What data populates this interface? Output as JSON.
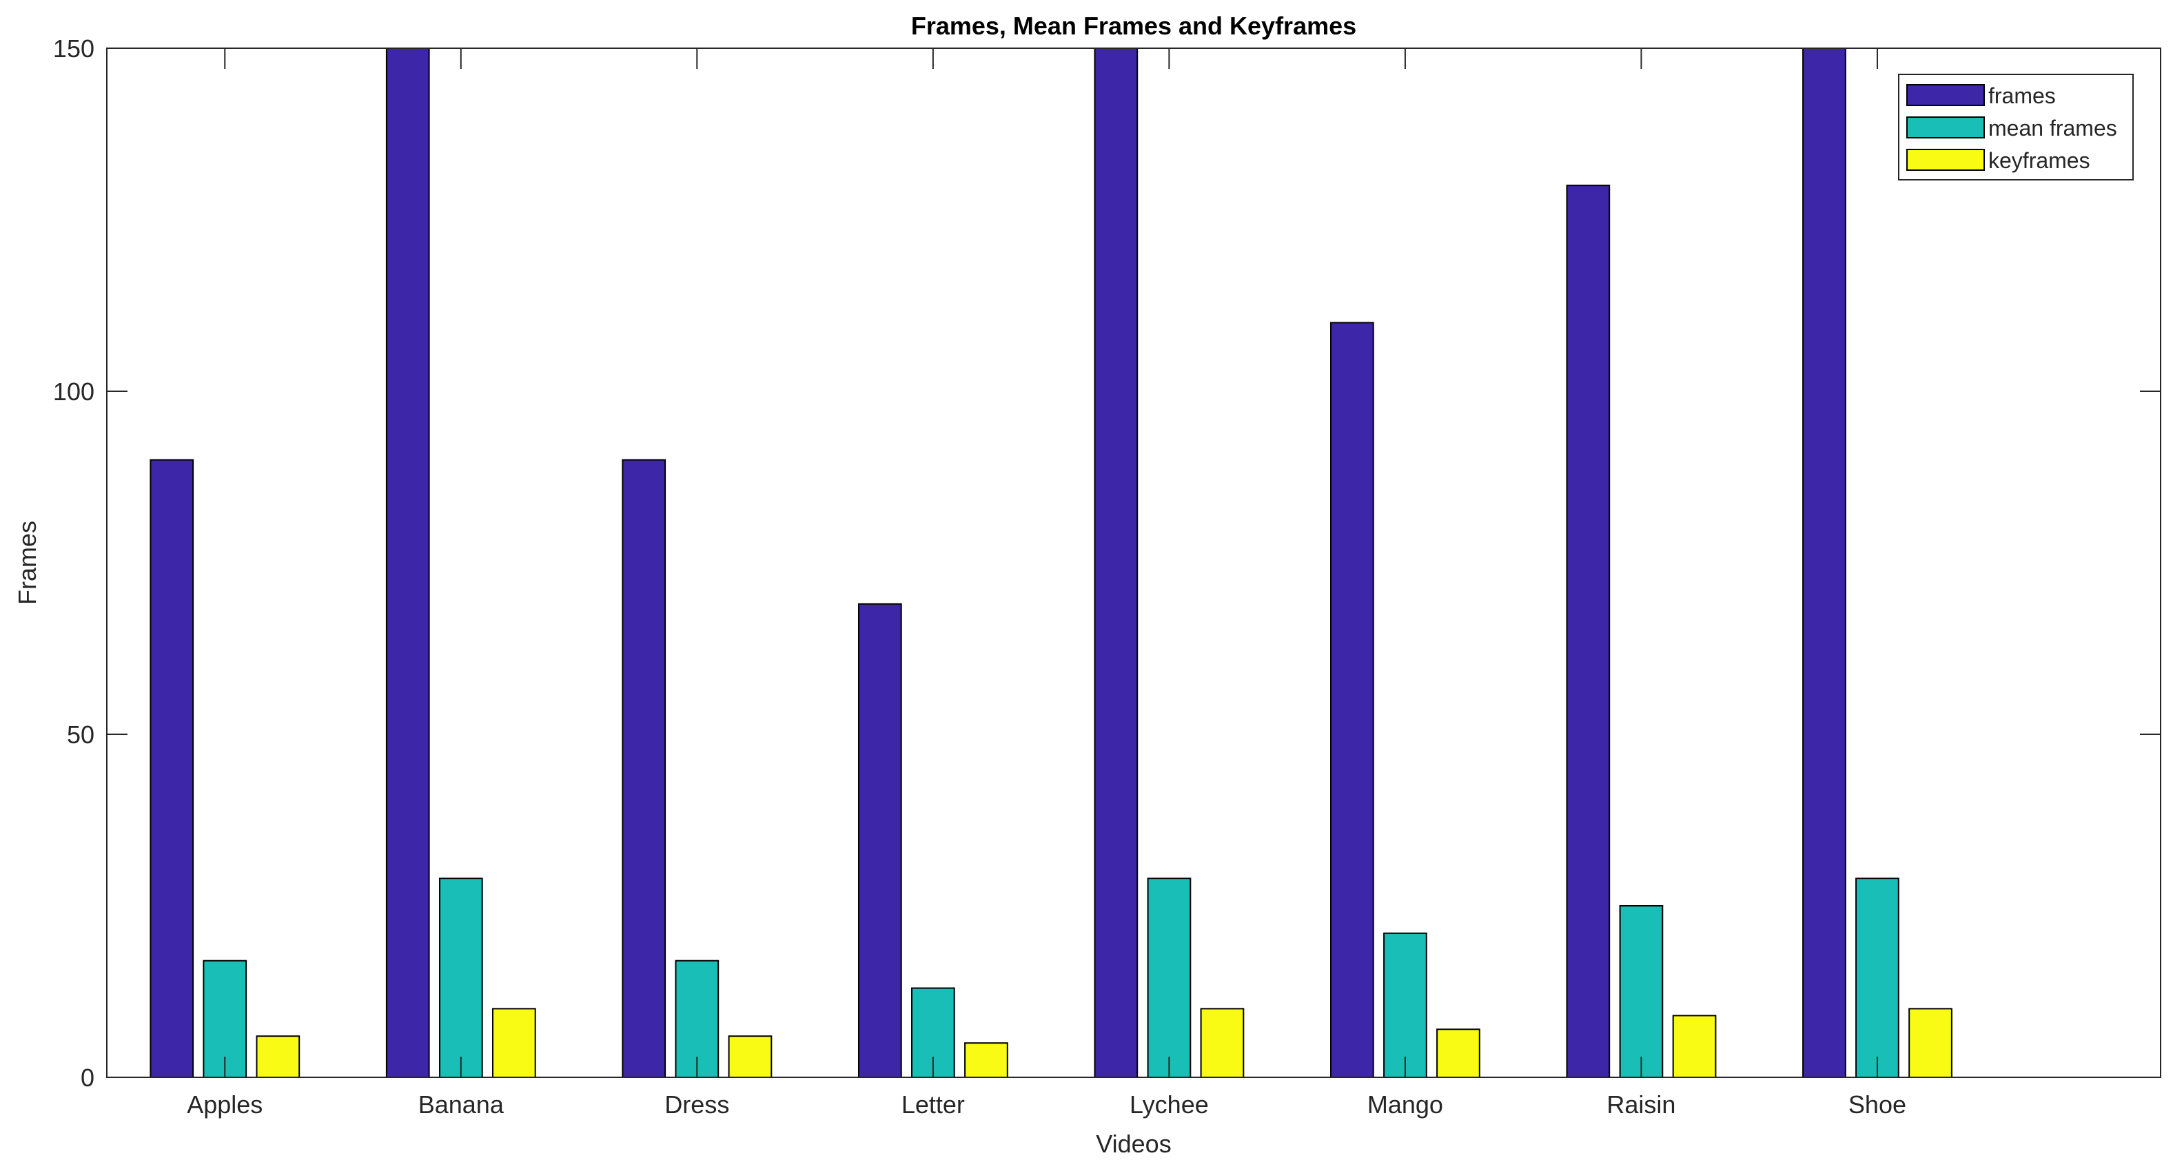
{
  "chart_data": {
    "type": "bar",
    "title": "Frames, Mean Frames and Keyframes",
    "xlabel": "Videos",
    "ylabel": "Frames",
    "ylim": [
      0,
      150
    ],
    "yticks": [
      "0",
      "50",
      "100",
      "150"
    ],
    "categories": [
      "Apples",
      "Banana",
      "Dress",
      "Letter",
      "Lychee",
      "Mango",
      "Raisin",
      "Shoe"
    ],
    "series": [
      {
        "name": "frames",
        "color": "#3e26a8",
        "values": [
          90,
          150,
          90,
          69,
          150,
          110,
          130,
          150
        ]
      },
      {
        "name": "mean frames",
        "color": "#19bfb7",
        "values": [
          17,
          29,
          17,
          13,
          29,
          21,
          25,
          29
        ]
      },
      {
        "name": "keyframes",
        "color": "#f9fb15",
        "values": [
          6,
          10,
          6,
          5,
          10,
          7,
          9,
          10
        ]
      }
    ],
    "legend_position": "top-right",
    "grid": false
  }
}
